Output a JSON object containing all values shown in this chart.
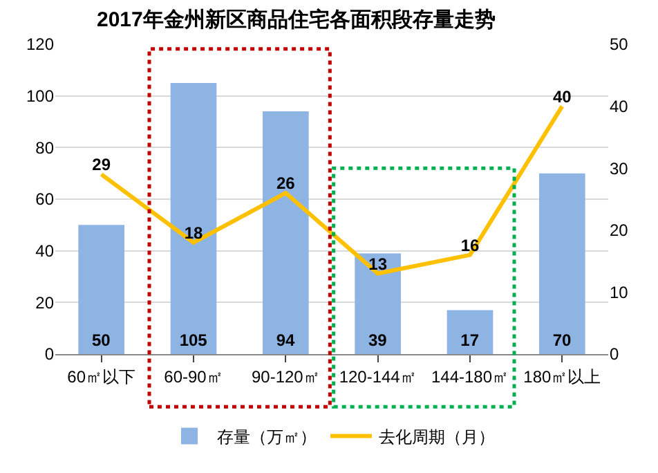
{
  "chart_data": {
    "type": "bar",
    "title": "2017年金州新区商品住宅各面积段存量走势",
    "categories": [
      "60㎡以下",
      "60-90㎡",
      "90-120㎡",
      "120-144㎡",
      "144-180㎡",
      "180㎡以上"
    ],
    "series": [
      {
        "name": "存量（万㎡）",
        "color": "#8eb4e3",
        "values": [
          50,
          105,
          94,
          39,
          17,
          70
        ]
      },
      {
        "name": "去化周期（月）",
        "type": "line",
        "axis": "y2",
        "color": "#ffc000",
        "values": [
          29,
          18,
          26,
          13,
          16,
          40
        ]
      }
    ],
    "ylim": [
      0,
      120
    ],
    "yticks": [
      0,
      20,
      40,
      60,
      80,
      100,
      120
    ],
    "y2lim": [
      0,
      50
    ],
    "y2ticks": [
      0,
      10,
      20,
      30,
      40,
      50
    ],
    "grid": "y",
    "legend": "bottom",
    "data_labels": true,
    "marker": "none"
  }
}
